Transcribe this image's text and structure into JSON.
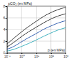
{
  "chart_data": {
    "type": "line",
    "log": "x",
    "grid": true,
    "ylabel": "pCO₂ (en MPa)",
    "xlabel": "p (en MPa)",
    "x": [
      0.1,
      0.3,
      1,
      3,
      10,
      30,
      100,
      300,
      1000
    ],
    "xlim": [
      0.1,
      1000
    ],
    "xticks": [
      {
        "value": 0.1,
        "label": "10⁻¹"
      },
      {
        "value": 1,
        "label": "10⁰"
      },
      {
        "value": 10,
        "label": "10¹"
      },
      {
        "value": 100,
        "label": "10²"
      },
      {
        "value": 1000,
        "label": "10³"
      }
    ],
    "ylim": [
      0,
      8
    ],
    "yticks": [
      0,
      2,
      4,
      6,
      8
    ],
    "series": [
      {
        "color": "#222222",
        "values": [
          1.5,
          2.5,
          3.6,
          4.5,
          5.4,
          6.2,
          6.9,
          7.4,
          7.8
        ]
      },
      {
        "color": "#222222",
        "values": [
          1.0,
          1.8,
          2.8,
          3.6,
          4.4,
          5.1,
          5.8,
          6.3,
          6.7
        ]
      },
      {
        "color": "#1f4fa8",
        "values": [
          0.6,
          1.1,
          1.9,
          2.6,
          3.3,
          4.0,
          4.6,
          5.1,
          5.5
        ]
      },
      {
        "color": "#2aa8b8",
        "values": [
          0.3,
          0.6,
          1.1,
          1.6,
          2.2,
          2.8,
          3.4,
          3.9,
          4.3
        ]
      }
    ]
  }
}
